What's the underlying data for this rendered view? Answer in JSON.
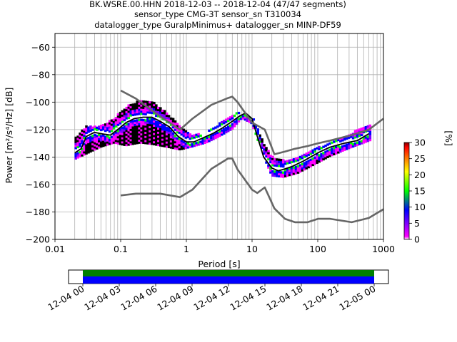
{
  "title": {
    "line1": "BK.WSRE.00.HHN   2018-12-03 -- 2018-12-04  (47/47 segments)",
    "line2": "sensor_type CMG-3T sensor_sn T310034",
    "line3": "datalogger_type GuralpMinimus+ datalogger_sn MINP-DF59"
  },
  "chart_data": [
    {
      "type": "heatmap",
      "xlabel": "Period [s]",
      "ylabel": "Power [m²/s⁴/Hz] [dB]",
      "xscale": "log",
      "xlim": [
        0.01,
        1000
      ],
      "ylim": [
        -200,
        -50
      ],
      "grid": true,
      "x_ticks": [
        0.01,
        0.1,
        1,
        10,
        100,
        1000
      ],
      "x_tick_labels": [
        "0.01",
        "0.1",
        "1",
        "10",
        "100",
        "1000"
      ],
      "y_ticks": [
        -60,
        -80,
        -100,
        -120,
        -140,
        -160,
        -180,
        -200
      ],
      "y_tick_labels": [
        "−60",
        "−80",
        "−100",
        "−120",
        "−140",
        "−160",
        "−180",
        "−200"
      ],
      "colorbar": {
        "label": "[%]",
        "range": [
          0,
          30
        ],
        "ticks": [
          0,
          5,
          10,
          15,
          20,
          25,
          30
        ],
        "tick_labels": [
          "0",
          "5",
          "10",
          "15",
          "20",
          "25",
          "30"
        ],
        "colormap": [
          "#ffffff",
          "#ff00ff",
          "#0000ff",
          "#00ff00",
          "#ffff00",
          "#ff8000",
          "#ff0000",
          "#800000"
        ]
      },
      "series": [
        {
          "role": "mean_psd",
          "color": "#000000",
          "x": [
            0.02,
            0.025,
            0.03,
            0.04,
            0.05,
            0.07,
            0.09,
            0.12,
            0.16,
            0.22,
            0.3,
            0.4,
            0.55,
            0.75,
            1.0,
            1.3,
            1.8,
            2.5,
            3.5,
            5.0,
            6.5,
            8.0,
            10,
            12,
            15,
            20,
            25,
            30,
            40,
            60,
            100,
            150,
            250,
            400,
            600
          ],
          "y": [
            -137,
            -134,
            -125,
            -122,
            -123,
            -124,
            -120,
            -115,
            -112,
            -111,
            -111,
            -114,
            -118,
            -125,
            -129,
            -129,
            -126,
            -123,
            -119,
            -114,
            -110,
            -108,
            -112,
            -125,
            -140,
            -148,
            -150,
            -149,
            -147,
            -143,
            -137,
            -133,
            -130,
            -128,
            -123
          ]
        },
        {
          "role": "nhnm",
          "color": "#666666",
          "x": [
            0.1,
            0.17,
            0.4,
            0.8,
            1.24,
            2.4,
            4.3,
            5.0,
            6.0,
            10.0,
            12.0,
            15.6,
            21.9,
            31.6,
            45.0,
            70.0,
            101.0,
            154.0,
            328.0,
            600.0,
            1000.0
          ],
          "y": [
            -91.5,
            -97.4,
            -110.5,
            -120.0,
            -112.0,
            -102.0,
            -97.0,
            -96.0,
            -100.0,
            -115.0,
            -117.0,
            -120.0,
            -138.0,
            -136.0,
            -134.0,
            -132.0,
            -130.0,
            -128.0,
            -124.0,
            -120.0,
            -112.0
          ]
        },
        {
          "role": "nlnm",
          "color": "#666666",
          "x": [
            0.1,
            0.17,
            0.4,
            0.8,
            1.24,
            2.4,
            4.3,
            5.0,
            6.0,
            10.0,
            12.0,
            15.6,
            21.9,
            31.6,
            45.0,
            70.0,
            101.0,
            154.0,
            328.0,
            600.0,
            1000.0
          ],
          "y": [
            -168.0,
            -166.7,
            -166.7,
            -169.2,
            -163.7,
            -148.6,
            -141.1,
            -141.1,
            -149.0,
            -163.8,
            -166.2,
            -162.1,
            -177.5,
            -185.0,
            -187.5,
            -187.5,
            -185.0,
            -185.0,
            -187.5,
            -184.4,
            -178.0
          ]
        }
      ],
      "density_spread": {
        "x": [
          0.02,
          0.03,
          0.05,
          0.08,
          0.12,
          0.2,
          0.3,
          0.5,
          0.8,
          1.2,
          2,
          3,
          5,
          7,
          10,
          15,
          20,
          30,
          50,
          80,
          150,
          300,
          650
        ],
        "upper": [
          -127,
          -118,
          -118,
          -112,
          -104,
          -99,
          -100,
          -108,
          -118,
          -125,
          -123,
          -117,
          -110,
          -107,
          -110,
          -130,
          -140,
          -143,
          -140,
          -136,
          -130,
          -124,
          -116
        ],
        "lower": [
          -142,
          -138,
          -133,
          -130,
          -132,
          -130,
          -131,
          -133,
          -135,
          -133,
          -130,
          -126,
          -120,
          -112,
          -116,
          -140,
          -154,
          -155,
          -152,
          -147,
          -140,
          -134,
          -128
        ]
      }
    },
    {
      "type": "bar",
      "role": "data_availability",
      "x_tick_labels": [
        "12-04 00",
        "12-04 03",
        "12-04 06",
        "12-04 09",
        "12-04 12",
        "12-04 15",
        "12-04 18",
        "12-04 21",
        "12-05 00"
      ],
      "colors": {
        "top": "#008000",
        "bottom": "#0000ff"
      },
      "coverage": [
        0.0,
        1.0
      ]
    }
  ]
}
